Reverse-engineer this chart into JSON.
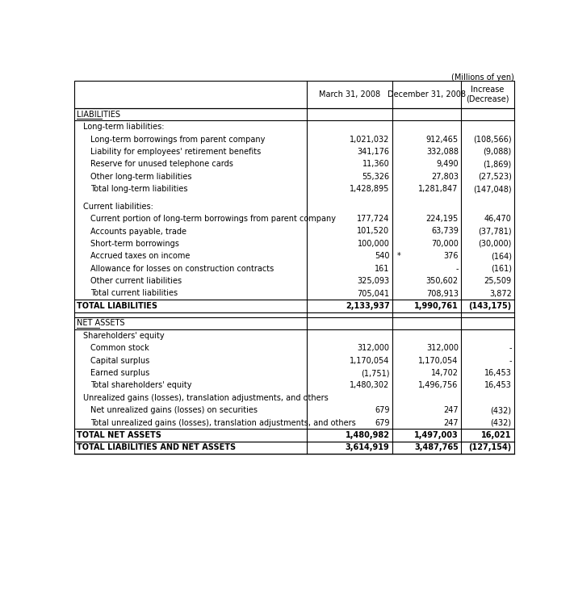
{
  "title_note": "(Millions of yen)",
  "headers": [
    "",
    "March 31, 2008",
    "December 31, 2008",
    "Increase\n(Decrease)"
  ],
  "rows": [
    {
      "label": "LIABILITIES",
      "indent": 0,
      "col1": "",
      "col2": "",
      "col3": "",
      "style": "section_header",
      "underline": true
    },
    {
      "label": "Long-term liabilities:",
      "indent": 1,
      "col1": "",
      "col2": "",
      "col3": "",
      "style": "subsection"
    },
    {
      "label": "Long-term borrowings from parent company",
      "indent": 2,
      "col1": "1,021,032",
      "col2": "912,465",
      "col3": "(108,566)",
      "style": "normal"
    },
    {
      "label": "Liability for employees' retirement benefits",
      "indent": 2,
      "col1": "341,176",
      "col2": "332,088",
      "col3": "(9,088)",
      "style": "normal"
    },
    {
      "label": "Reserve for unused telephone cards",
      "indent": 2,
      "col1": "11,360",
      "col2": "9,490",
      "col3": "(1,869)",
      "style": "normal"
    },
    {
      "label": "Other long-term liabilities",
      "indent": 2,
      "col1": "55,326",
      "col2": "27,803",
      "col3": "(27,523)",
      "style": "normal"
    },
    {
      "label": "Total long-term liabilities",
      "indent": 2,
      "col1": "1,428,895",
      "col2": "1,281,847",
      "col3": "(147,048)",
      "style": "normal"
    },
    {
      "label": "",
      "indent": 0,
      "col1": "",
      "col2": "",
      "col3": "",
      "style": "spacer"
    },
    {
      "label": "Current liabilities:",
      "indent": 1,
      "col1": "",
      "col2": "",
      "col3": "",
      "style": "subsection"
    },
    {
      "label": "Current portion of long-term borrowings from parent company",
      "indent": 2,
      "col1": "177,724",
      "col2": "224,195",
      "col3": "46,470",
      "style": "normal"
    },
    {
      "label": "Accounts payable, trade",
      "indent": 2,
      "col1": "101,520",
      "col2": "63,739",
      "col3": "(37,781)",
      "style": "normal"
    },
    {
      "label": "Short-term borrowings",
      "indent": 2,
      "col1": "100,000",
      "col2": "70,000",
      "col3": "(30,000)",
      "style": "normal"
    },
    {
      "label": "Accrued taxes on income",
      "indent": 2,
      "col1": "540",
      "col2": "* 376",
      "col3": "(164)",
      "style": "normal",
      "star": true
    },
    {
      "label": "Allowance for losses on construction contracts",
      "indent": 2,
      "col1": "161",
      "col2": "-",
      "col3": "(161)",
      "style": "normal"
    },
    {
      "label": "Other current liabilities",
      "indent": 2,
      "col1": "325,093",
      "col2": "350,602",
      "col3": "25,509",
      "style": "normal"
    },
    {
      "label": "Total current liabilities",
      "indent": 2,
      "col1": "705,041",
      "col2": "708,913",
      "col3": "3,872",
      "style": "normal"
    },
    {
      "label": "TOTAL LIABILITIES",
      "indent": 0,
      "col1": "2,133,937",
      "col2": "1,990,761",
      "col3": "(143,175)",
      "style": "total"
    },
    {
      "label": "",
      "indent": 0,
      "col1": "",
      "col2": "",
      "col3": "",
      "style": "spacer"
    },
    {
      "label": "NET ASSETS",
      "indent": 0,
      "col1": "",
      "col2": "",
      "col3": "",
      "style": "section_header",
      "underline": true
    },
    {
      "label": "Shareholders' equity",
      "indent": 1,
      "col1": "",
      "col2": "",
      "col3": "",
      "style": "subsection"
    },
    {
      "label": "Common stock",
      "indent": 2,
      "col1": "312,000",
      "col2": "312,000",
      "col3": "-",
      "style": "normal"
    },
    {
      "label": "Capital surplus",
      "indent": 2,
      "col1": "1,170,054",
      "col2": "1,170,054",
      "col3": "-",
      "style": "normal"
    },
    {
      "label": "Earned surplus",
      "indent": 2,
      "col1": "(1,751)",
      "col2": "14,702",
      "col3": "16,453",
      "style": "normal"
    },
    {
      "label": "Total shareholders' equity",
      "indent": 2,
      "col1": "1,480,302",
      "col2": "1,496,756",
      "col3": "16,453",
      "style": "normal"
    },
    {
      "label": "Unrealized gains (losses), translation adjustments, and others",
      "indent": 1,
      "col1": "",
      "col2": "",
      "col3": "",
      "style": "subsection"
    },
    {
      "label": "Net unrealized gains (losses) on securities",
      "indent": 2,
      "col1": "679",
      "col2": "247",
      "col3": "(432)",
      "style": "normal"
    },
    {
      "label": "Total unrealized gains (losses), translation adjustments, and others",
      "indent": 2,
      "col1": "679",
      "col2": "247",
      "col3": "(432)",
      "style": "normal"
    },
    {
      "label": "TOTAL NET ASSETS",
      "indent": 0,
      "col1": "1,480,982",
      "col2": "1,497,003",
      "col3": "16,021",
      "style": "total"
    },
    {
      "label": "TOTAL LIABILITIES AND NET ASSETS",
      "indent": 0,
      "col1": "3,614,919",
      "col2": "3,487,765",
      "col3": "(127,154)",
      "style": "total"
    }
  ],
  "font_size": 7.0,
  "bg_color": "#ffffff"
}
